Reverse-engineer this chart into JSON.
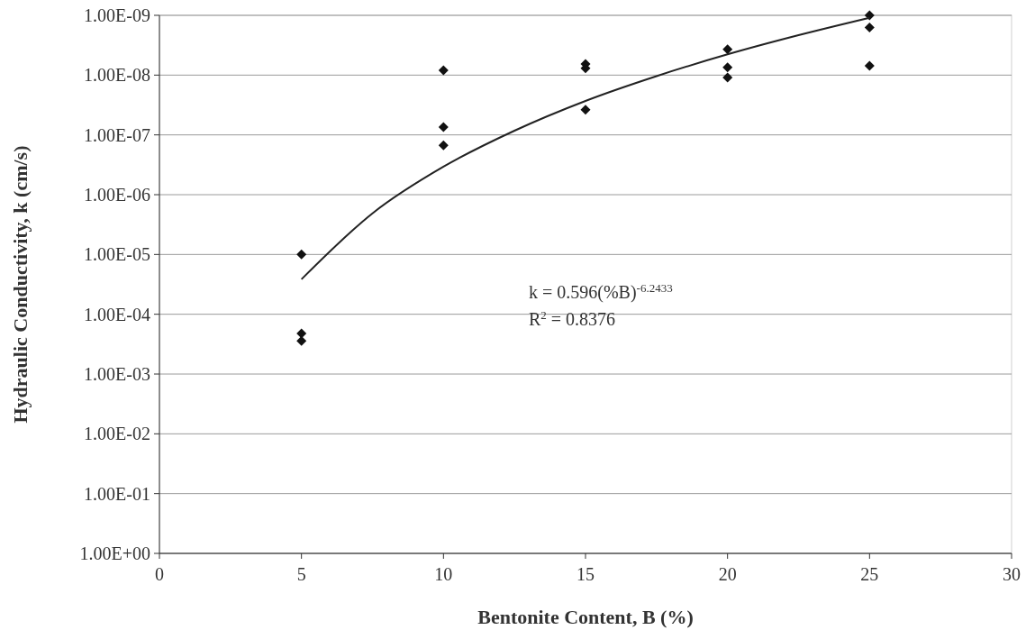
{
  "chart_data": {
    "type": "scatter",
    "xlabel": "Bentonite Content, B (%)",
    "ylabel": "Hydraulic Conductivity, k (cm/s)",
    "xlim": [
      0,
      30
    ],
    "xticks": [
      0,
      5,
      10,
      15,
      20,
      25,
      30
    ],
    "ylim": [
      1,
      1e-09
    ],
    "log": "y",
    "yticks": [
      {
        "value": 1,
        "label": "1.00E+00"
      },
      {
        "value": 0.1,
        "label": "1.00E-01"
      },
      {
        "value": 0.01,
        "label": "1.00E-02"
      },
      {
        "value": 0.001,
        "label": "1.00E-03"
      },
      {
        "value": 0.0001,
        "label": "1.00E-04"
      },
      {
        "value": 1e-05,
        "label": "1.00E-05"
      },
      {
        "value": 1e-06,
        "label": "1.00E-06"
      },
      {
        "value": 1e-07,
        "label": "1.00E-07"
      },
      {
        "value": 1e-08,
        "label": "1.00E-08"
      },
      {
        "value": 1e-09,
        "label": "1.00E-09"
      }
    ],
    "grid": "y",
    "series": [
      {
        "marker": "diamond",
        "color": "#111111",
        "x": [
          5,
          5,
          5,
          10,
          10,
          10,
          15,
          15,
          15,
          20,
          20,
          20,
          25,
          25,
          25
        ],
        "values": [
          1e-05,
          0.00021,
          0.00028,
          8.3e-09,
          7.4e-08,
          1.5e-07,
          6.5e-09,
          7.7e-09,
          3.8e-08,
          3.7e-09,
          7.4e-09,
          1.1e-08,
          1e-09,
          1.6e-09,
          7e-09
        ]
      },
      {
        "type": "line",
        "color": "#222222",
        "line_style": "solid",
        "x": [
          5,
          7.5,
          10,
          12.5,
          15,
          17.5,
          20,
          22.5,
          25
        ],
        "values": [
          2.6e-05,
          2.05e-06,
          3.4e-07,
          8.5e-08,
          2.7e-08,
          1.04e-08,
          4.5e-09,
          2.15e-09,
          1.1e-09
        ]
      }
    ],
    "annotations": [
      "k = 0.596(%B)$^{-6.2433}$",
      "R$^{2}$ = 0.8376"
    ]
  }
}
